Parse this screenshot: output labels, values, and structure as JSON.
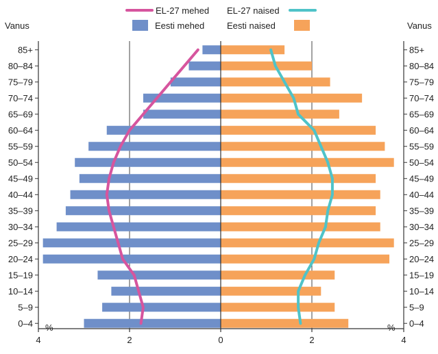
{
  "chart_data": {
    "type": "bar",
    "orientation": "horizontal-population-pyramid",
    "y_axis_label_left": "Vanus",
    "y_axis_label_right": "Vanus",
    "unit_left": "%",
    "unit_right": "%",
    "categories": [
      "85+",
      "80–84",
      "75–79",
      "70–74",
      "65–69",
      "60–64",
      "55–59",
      "50–54",
      "45–49",
      "40–44",
      "35–39",
      "30–34",
      "25–29",
      "20–24",
      "15–19",
      "10–14",
      "5–9",
      "0–4"
    ],
    "x_ticks": [
      "4",
      "2",
      "0",
      "2",
      "4"
    ],
    "xlim": [
      -4,
      4
    ],
    "grid_x": [
      -2,
      0,
      2
    ],
    "legend": {
      "line_men": "EL-27 mehed",
      "line_women": "EL-27 naised",
      "bar_men": "Eesti mehed",
      "bar_women": "Eesti naised"
    },
    "colors": {
      "bar_men": "#6f8fc9",
      "bar_women": "#f6a35a",
      "line_men": "#d6559e",
      "line_women": "#4fc3c8",
      "axis": "#333333"
    },
    "series": [
      {
        "name": "Eesti mehed",
        "kind": "bar",
        "side": "left",
        "values": [
          0.4,
          0.7,
          1.1,
          1.7,
          1.7,
          2.5,
          2.9,
          3.2,
          3.1,
          3.3,
          3.4,
          3.6,
          3.9,
          3.9,
          2.7,
          2.4,
          2.6,
          3.0
        ]
      },
      {
        "name": "Eesti naised",
        "kind": "bar",
        "side": "right",
        "values": [
          1.4,
          2.0,
          2.4,
          3.1,
          2.6,
          3.4,
          3.6,
          3.8,
          3.4,
          3.5,
          3.4,
          3.5,
          3.8,
          3.7,
          2.5,
          2.2,
          2.5,
          2.8
        ]
      },
      {
        "name": "EL-27 mehed",
        "kind": "line",
        "side": "left",
        "values": [
          0.5,
          0.8,
          1.1,
          1.4,
          1.7,
          2.0,
          2.2,
          2.35,
          2.45,
          2.5,
          2.45,
          2.35,
          2.25,
          2.15,
          1.9,
          1.8,
          1.7,
          1.75
        ]
      },
      {
        "name": "EL-27 naised",
        "kind": "line",
        "side": "right",
        "values": [
          1.1,
          1.2,
          1.4,
          1.6,
          1.7,
          2.05,
          2.2,
          2.35,
          2.45,
          2.45,
          2.35,
          2.3,
          2.15,
          2.05,
          1.85,
          1.7,
          1.7,
          1.75
        ]
      }
    ]
  }
}
